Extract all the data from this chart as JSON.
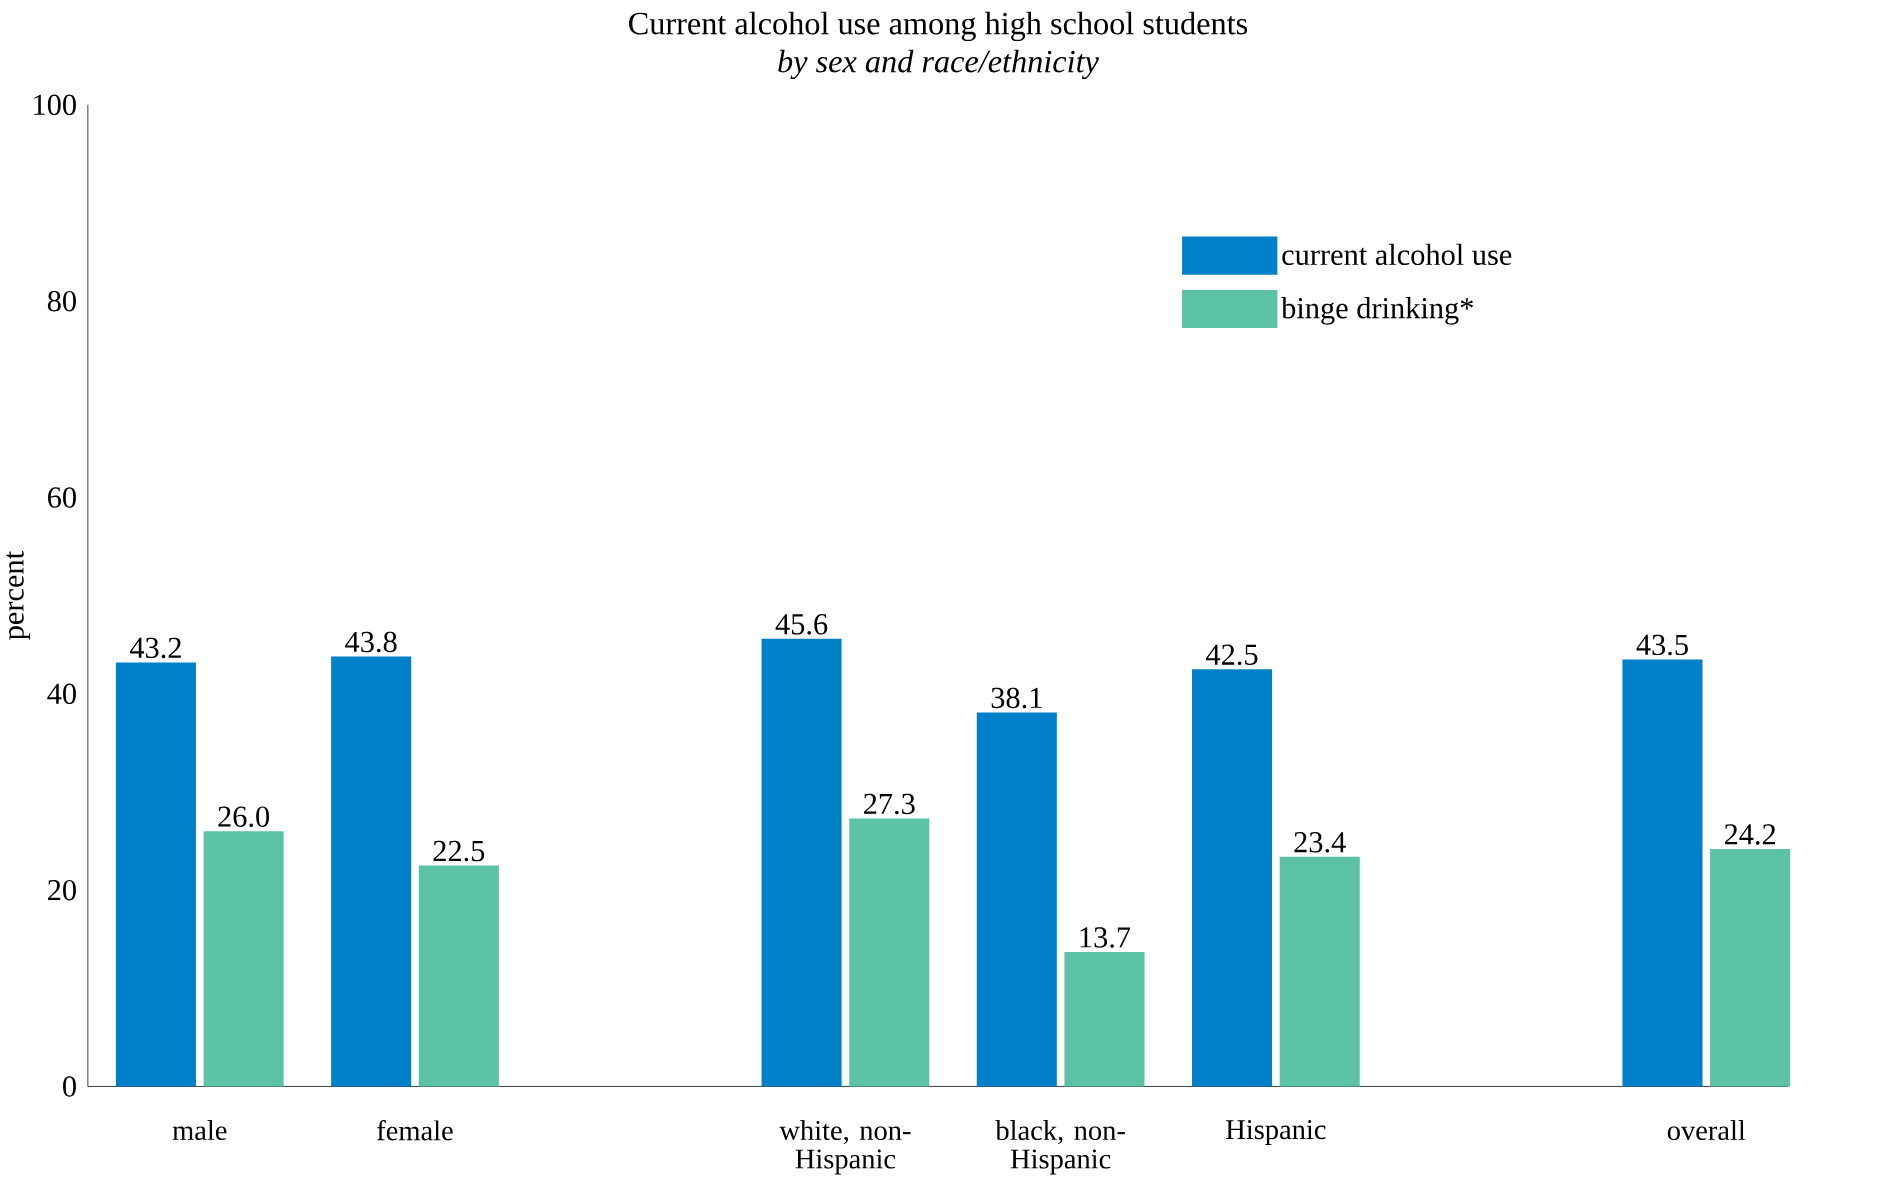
{
  "chart_data": {
    "type": "bar",
    "title": "Current alcohol use among high school students",
    "subtitle": "by sex and race/ethnicity",
    "ylabel": "percent",
    "categories": [
      "male",
      "female",
      null,
      "white, non-Hispanic",
      "black, non-Hispanic",
      "Hispanic",
      null,
      "overall"
    ],
    "series": [
      {
        "name": "current alcohol use",
        "color": "#0080c8",
        "values": [
          43.2,
          43.8,
          null,
          45.6,
          38.1,
          42.5,
          null,
          43.5
        ],
        "value_labels": [
          "43.2",
          "43.8",
          null,
          "45.6",
          "38.1",
          "42.5",
          null,
          "43.5"
        ]
      },
      {
        "name": "binge drinking*",
        "color": "#5bc2a4",
        "values": [
          26.0,
          22.5,
          null,
          27.3,
          13.7,
          23.4,
          null,
          24.2
        ],
        "value_labels": [
          "26.0",
          "22.5",
          null,
          "27.3",
          "13.7",
          "23.4",
          null,
          "24.2"
        ]
      }
    ],
    "ylim": [
      0,
      100
    ],
    "yticks": [
      0,
      20,
      40,
      60,
      80,
      100
    ],
    "legend": "top right",
    "grid": false
  }
}
